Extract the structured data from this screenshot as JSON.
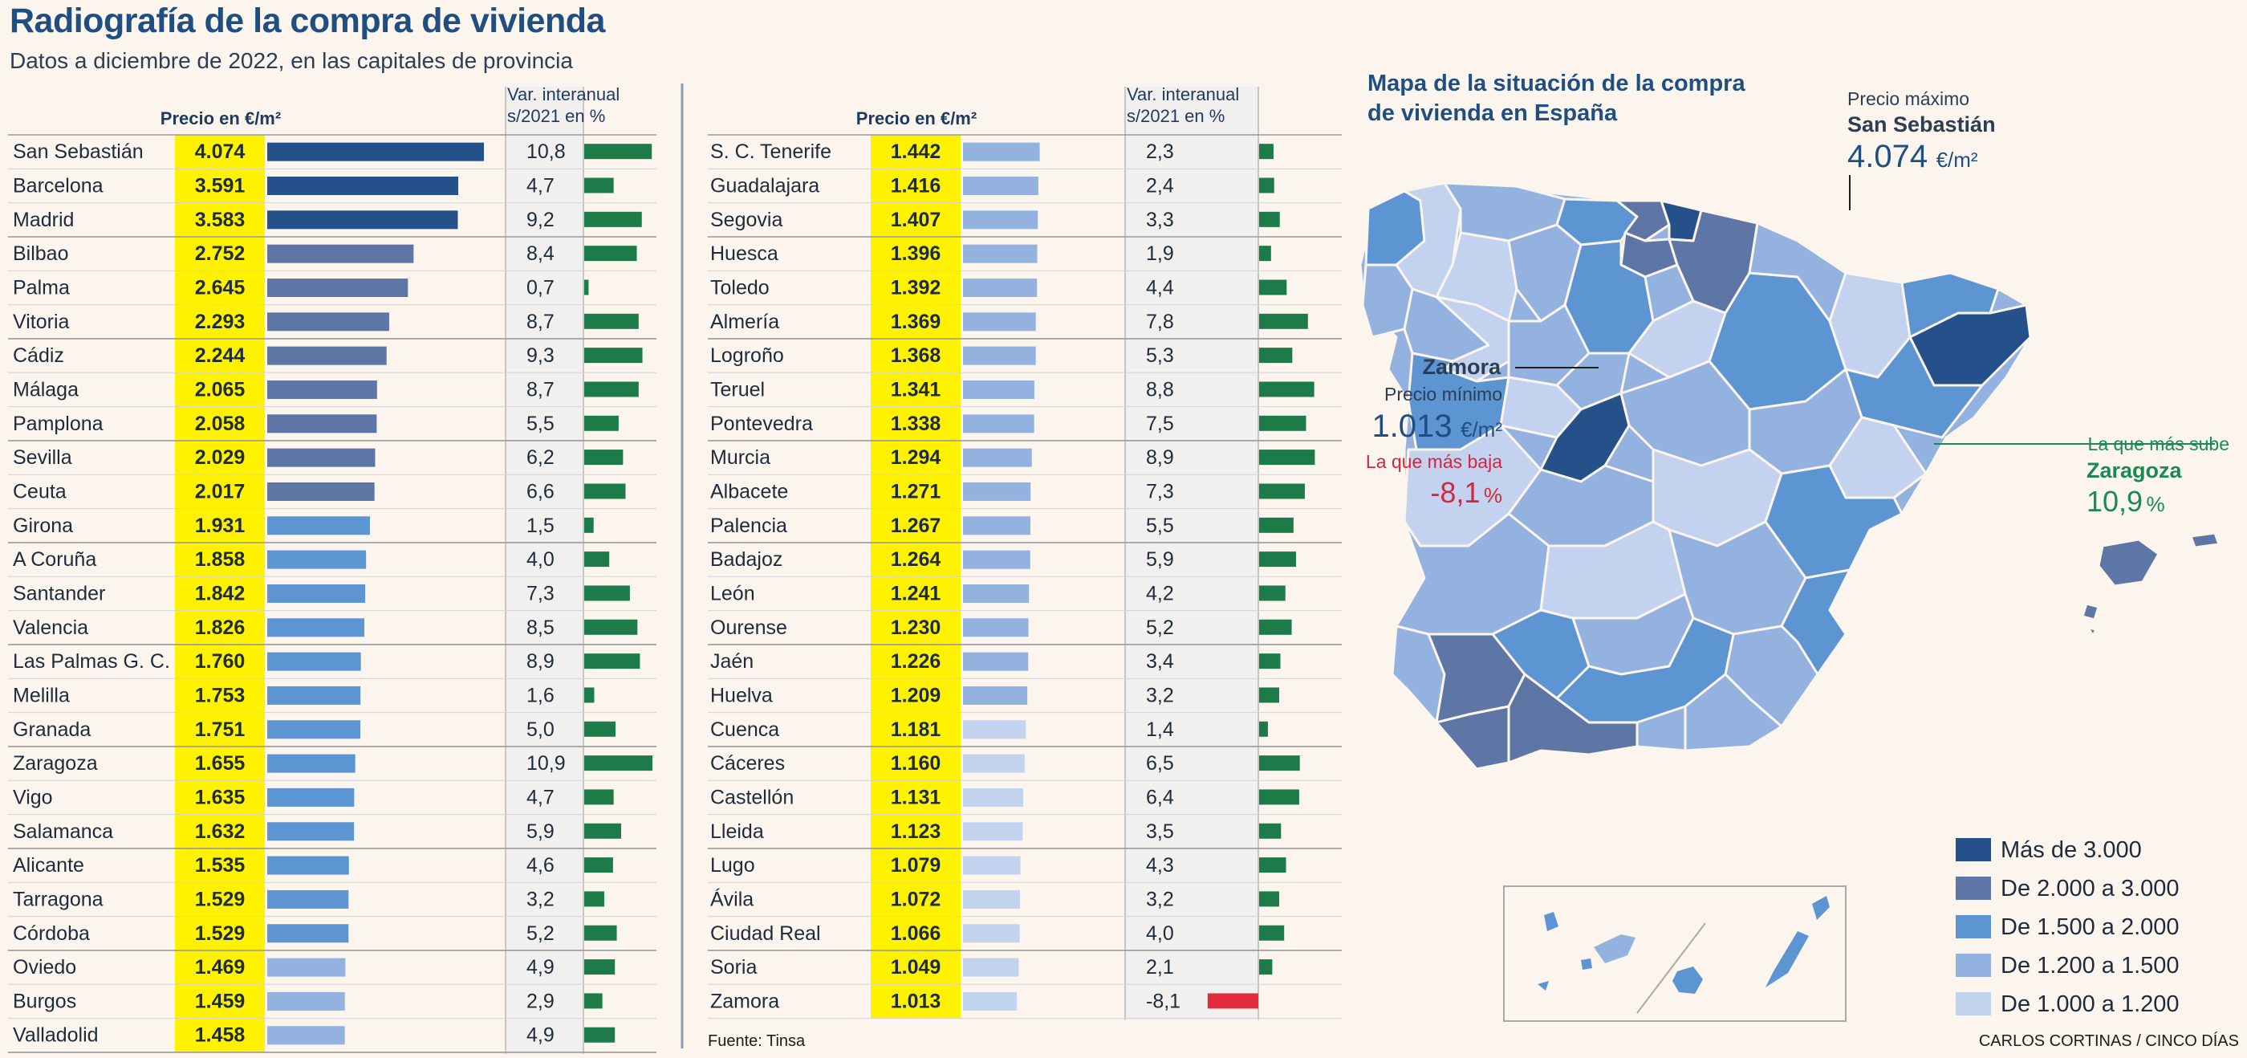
{
  "title": "Radiografía de la compra de vivienda",
  "subtitle": "Datos a diciembre de 2022, en las capitales de provincia",
  "source": "Fuente: Tinsa",
  "credit": "CARLOS CORTINAS / CINCO DÍAS",
  "colors": {
    "background": "#fcf5ee",
    "price_highlight": "#fff200",
    "var_column": "#f1f0ee",
    "tier_gt3000": "#24518a",
    "tier_2000_3000": "#5e76a6",
    "tier_1500_2000": "#5c95d2",
    "tier_1200_1500": "#94b2e0",
    "tier_1000_1200": "#c3d3ef",
    "positive_bar": "#1c7b48",
    "negative_bar": "#e22c3e",
    "title_blue": "#1f4e80",
    "highlight_green": "#1a8a52",
    "highlight_red": "#d6253c"
  },
  "chart_data": {
    "type": "table",
    "columns": {
      "price": "Precio en €/m²",
      "variation_line1": "Var. interanual",
      "variation_line2": "s/2021 en %"
    },
    "rows": [
      {
        "city": "San Sebastián",
        "price": 4074,
        "price_label": "4.074",
        "var": 10.8,
        "var_label": "10,8"
      },
      {
        "city": "Barcelona",
        "price": 3591,
        "price_label": "3.591",
        "var": 4.7,
        "var_label": "4,7"
      },
      {
        "city": "Madrid",
        "price": 3583,
        "price_label": "3.583",
        "var": 9.2,
        "var_label": "9,2"
      },
      {
        "city": "Bilbao",
        "price": 2752,
        "price_label": "2.752",
        "var": 8.4,
        "var_label": "8,4"
      },
      {
        "city": "Palma",
        "price": 2645,
        "price_label": "2.645",
        "var": 0.7,
        "var_label": "0,7"
      },
      {
        "city": "Vitoria",
        "price": 2293,
        "price_label": "2.293",
        "var": 8.7,
        "var_label": "8,7"
      },
      {
        "city": "Cádiz",
        "price": 2244,
        "price_label": "2.244",
        "var": 9.3,
        "var_label": "9,3"
      },
      {
        "city": "Málaga",
        "price": 2065,
        "price_label": "2.065",
        "var": 8.7,
        "var_label": "8,7"
      },
      {
        "city": "Pamplona",
        "price": 2058,
        "price_label": "2.058",
        "var": 5.5,
        "var_label": "5,5"
      },
      {
        "city": "Sevilla",
        "price": 2029,
        "price_label": "2.029",
        "var": 6.2,
        "var_label": "6,2"
      },
      {
        "city": "Ceuta",
        "price": 2017,
        "price_label": "2.017",
        "var": 6.6,
        "var_label": "6,6"
      },
      {
        "city": "Girona",
        "price": 1931,
        "price_label": "1.931",
        "var": 1.5,
        "var_label": "1,5"
      },
      {
        "city": "A Coruña",
        "price": 1858,
        "price_label": "1.858",
        "var": 4.0,
        "var_label": "4,0"
      },
      {
        "city": "Santander",
        "price": 1842,
        "price_label": "1.842",
        "var": 7.3,
        "var_label": "7,3"
      },
      {
        "city": "Valencia",
        "price": 1826,
        "price_label": "1.826",
        "var": 8.5,
        "var_label": "8,5"
      },
      {
        "city": "Las Palmas G. C.",
        "price": 1760,
        "price_label": "1.760",
        "var": 8.9,
        "var_label": "8,9"
      },
      {
        "city": "Melilla",
        "price": 1753,
        "price_label": "1.753",
        "var": 1.6,
        "var_label": "1,6"
      },
      {
        "city": "Granada",
        "price": 1751,
        "price_label": "1.751",
        "var": 5.0,
        "var_label": "5,0"
      },
      {
        "city": "Zaragoza",
        "price": 1655,
        "price_label": "1.655",
        "var": 10.9,
        "var_label": "10,9"
      },
      {
        "city": "Vigo",
        "price": 1635,
        "price_label": "1.635",
        "var": 4.7,
        "var_label": "4,7"
      },
      {
        "city": "Salamanca",
        "price": 1632,
        "price_label": "1.632",
        "var": 5.9,
        "var_label": "5,9"
      },
      {
        "city": "Alicante",
        "price": 1535,
        "price_label": "1.535",
        "var": 4.6,
        "var_label": "4,6"
      },
      {
        "city": "Tarragona",
        "price": 1529,
        "price_label": "1.529",
        "var": 3.2,
        "var_label": "3,2"
      },
      {
        "city": "Córdoba",
        "price": 1529,
        "price_label": "1.529",
        "var": 5.2,
        "var_label": "5,2"
      },
      {
        "city": "Oviedo",
        "price": 1469,
        "price_label": "1.469",
        "var": 4.9,
        "var_label": "4,9"
      },
      {
        "city": "Burgos",
        "price": 1459,
        "price_label": "1.459",
        "var": 2.9,
        "var_label": "2,9"
      },
      {
        "city": "Valladolid",
        "price": 1458,
        "price_label": "1.458",
        "var": 4.9,
        "var_label": "4,9"
      },
      {
        "city": "S. C. Tenerife",
        "price": 1442,
        "price_label": "1.442",
        "var": 2.3,
        "var_label": "2,3"
      },
      {
        "city": "Guadalajara",
        "price": 1416,
        "price_label": "1.416",
        "var": 2.4,
        "var_label": "2,4"
      },
      {
        "city": "Segovia",
        "price": 1407,
        "price_label": "1.407",
        "var": 3.3,
        "var_label": "3,3"
      },
      {
        "city": "Huesca",
        "price": 1396,
        "price_label": "1.396",
        "var": 1.9,
        "var_label": "1,9"
      },
      {
        "city": "Toledo",
        "price": 1392,
        "price_label": "1.392",
        "var": 4.4,
        "var_label": "4,4"
      },
      {
        "city": "Almería",
        "price": 1369,
        "price_label": "1.369",
        "var": 7.8,
        "var_label": "7,8"
      },
      {
        "city": "Logroño",
        "price": 1368,
        "price_label": "1.368",
        "var": 5.3,
        "var_label": "5,3"
      },
      {
        "city": "Teruel",
        "price": 1341,
        "price_label": "1.341",
        "var": 8.8,
        "var_label": "8,8"
      },
      {
        "city": "Pontevedra",
        "price": 1338,
        "price_label": "1.338",
        "var": 7.5,
        "var_label": "7,5"
      },
      {
        "city": "Murcia",
        "price": 1294,
        "price_label": "1.294",
        "var": 8.9,
        "var_label": "8,9"
      },
      {
        "city": "Albacete",
        "price": 1271,
        "price_label": "1.271",
        "var": 7.3,
        "var_label": "7,3"
      },
      {
        "city": "Palencia",
        "price": 1267,
        "price_label": "1.267",
        "var": 5.5,
        "var_label": "5,5"
      },
      {
        "city": "Badajoz",
        "price": 1264,
        "price_label": "1.264",
        "var": 5.9,
        "var_label": "5,9"
      },
      {
        "city": "León",
        "price": 1241,
        "price_label": "1.241",
        "var": 4.2,
        "var_label": "4,2"
      },
      {
        "city": "Ourense",
        "price": 1230,
        "price_label": "1.230",
        "var": 5.2,
        "var_label": "5,2"
      },
      {
        "city": "Jaén",
        "price": 1226,
        "price_label": "1.226",
        "var": 3.4,
        "var_label": "3,4"
      },
      {
        "city": "Huelva",
        "price": 1209,
        "price_label": "1.209",
        "var": 3.2,
        "var_label": "3,2"
      },
      {
        "city": "Cuenca",
        "price": 1181,
        "price_label": "1.181",
        "var": 1.4,
        "var_label": "1,4"
      },
      {
        "city": "Cáceres",
        "price": 1160,
        "price_label": "1.160",
        "var": 6.5,
        "var_label": "6,5"
      },
      {
        "city": "Castellón",
        "price": 1131,
        "price_label": "1.131",
        "var": 6.4,
        "var_label": "6,4"
      },
      {
        "city": "Lleida",
        "price": 1123,
        "price_label": "1.123",
        "var": 3.5,
        "var_label": "3,5"
      },
      {
        "city": "Lugo",
        "price": 1079,
        "price_label": "1.079",
        "var": 4.3,
        "var_label": "4,3"
      },
      {
        "city": "Ávila",
        "price": 1072,
        "price_label": "1.072",
        "var": 3.2,
        "var_label": "3,2"
      },
      {
        "city": "Ciudad Real",
        "price": 1066,
        "price_label": "1.066",
        "var": 4.0,
        "var_label": "4,0"
      },
      {
        "city": "Soria",
        "price": 1049,
        "price_label": "1.049",
        "var": 2.1,
        "var_label": "2,1"
      },
      {
        "city": "Zamora",
        "price": 1013,
        "price_label": "1.013",
        "var": -8.1,
        "var_label": "-8,1"
      }
    ]
  },
  "map": {
    "title_line1": "Mapa de la situación de la compra",
    "title_line2": "de vivienda en España",
    "max": {
      "label": "Precio máximo",
      "city": "San Sebastián",
      "value": "4.074",
      "unit": "€/m²"
    },
    "min": {
      "city": "Zamora",
      "label": "Precio mínimo",
      "value": "1.013",
      "unit": "€/m²",
      "drop_label": "La que más baja",
      "drop_value": "-8,1",
      "pct": "%"
    },
    "rise": {
      "label": "La que más sube",
      "city": "Zaragoza",
      "value": "10,9",
      "pct": "%"
    },
    "legend": [
      {
        "label": "Más de 3.000",
        "color": "#24518a"
      },
      {
        "label": "De 2.000 a 3.000",
        "color": "#5e76a6"
      },
      {
        "label": "De 1.500 a 2.000",
        "color": "#5c95d2"
      },
      {
        "label": "De 1.200 a 1.500",
        "color": "#94b2e0"
      },
      {
        "label": "De 1.000 a 1.200",
        "color": "#c3d3ef"
      }
    ]
  }
}
